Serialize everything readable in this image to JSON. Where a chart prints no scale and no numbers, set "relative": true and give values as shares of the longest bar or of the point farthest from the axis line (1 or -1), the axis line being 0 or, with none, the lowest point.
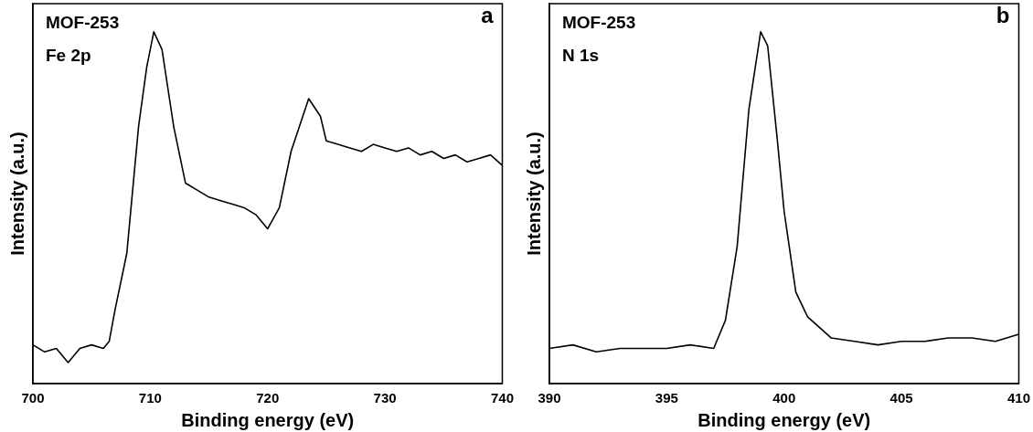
{
  "chart_data": [
    {
      "type": "line",
      "relative": true,
      "xlabel": "Binding energy (eV)",
      "ylabel": "Intensity (a.u.)",
      "xlim": [
        700,
        740
      ],
      "xticks": [
        700,
        710,
        720,
        730,
        740
      ],
      "grid": false,
      "legend": false,
      "marker": "none",
      "line_style": "solid",
      "annotations": [
        "MOF-253",
        "Fe 2p",
        "a"
      ],
      "series": [
        {
          "color": "#000000",
          "x": [
            700,
            701,
            702,
            703,
            704,
            705,
            706,
            706.5,
            707,
            708,
            709,
            709.7,
            710.3,
            711,
            712,
            713,
            714,
            715,
            716,
            717,
            718,
            719,
            720,
            721,
            722,
            723,
            723.5,
            724.5,
            725,
            726,
            727,
            728,
            729,
            730,
            731,
            732,
            733,
            734,
            735,
            736,
            737,
            738,
            739,
            740
          ],
          "values": [
            0.11,
            0.09,
            0.1,
            0.06,
            0.1,
            0.11,
            0.1,
            0.12,
            0.21,
            0.37,
            0.73,
            0.9,
            1.0,
            0.95,
            0.73,
            0.57,
            0.55,
            0.53,
            0.52,
            0.51,
            0.5,
            0.48,
            0.44,
            0.5,
            0.66,
            0.76,
            0.81,
            0.76,
            0.69,
            0.68,
            0.67,
            0.66,
            0.68,
            0.67,
            0.66,
            0.67,
            0.65,
            0.66,
            0.64,
            0.65,
            0.63,
            0.64,
            0.65,
            0.62
          ]
        }
      ]
    },
    {
      "type": "line",
      "relative": true,
      "xlabel": "Binding energy (eV)",
      "ylabel": "Intensity (a.u.)",
      "xlim": [
        390,
        410
      ],
      "xticks": [
        390,
        395,
        400,
        405,
        410
      ],
      "grid": false,
      "legend": false,
      "marker": "none",
      "line_style": "solid",
      "annotations": [
        "MOF-253",
        "N 1s",
        "b"
      ],
      "series": [
        {
          "color": "#000000",
          "x": [
            390,
            391,
            392,
            393,
            394,
            395,
            396,
            397,
            397.5,
            398,
            398.5,
            399,
            399.3,
            399.7,
            400,
            400.5,
            401,
            402,
            403,
            404,
            405,
            406,
            407,
            408,
            409,
            410
          ],
          "values": [
            0.1,
            0.11,
            0.09,
            0.1,
            0.1,
            0.1,
            0.11,
            0.1,
            0.18,
            0.39,
            0.78,
            1.0,
            0.96,
            0.7,
            0.49,
            0.26,
            0.19,
            0.13,
            0.12,
            0.11,
            0.12,
            0.12,
            0.13,
            0.13,
            0.12,
            0.14
          ]
        }
      ]
    }
  ]
}
